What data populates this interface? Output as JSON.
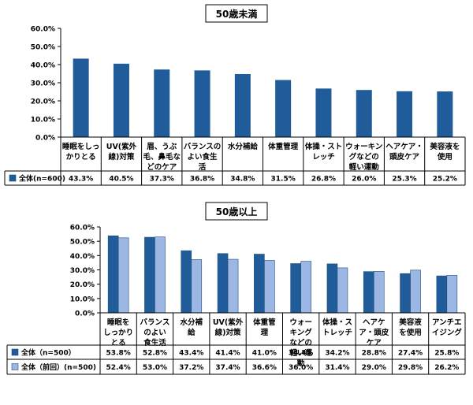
{
  "colors": {
    "dark_blue": "#1F5C99",
    "light_blue": "#9DB7E5",
    "axis": "#000000",
    "grid": "#D9D9D9"
  },
  "chart_data": [
    {
      "type": "bar",
      "title": "50歳未満",
      "ylim": [
        0,
        60
      ],
      "yticks": [
        "0.0%",
        "10.0%",
        "20.0%",
        "30.0%",
        "40.0%",
        "50.0%",
        "60.0%"
      ],
      "categories": [
        [
          "睡眠をしっ",
          "かりとる"
        ],
        [
          "UV(紫外",
          "線)対策"
        ],
        [
          "眉、うぶ",
          "毛、鼻毛な",
          "どのケア"
        ],
        [
          "バランスの",
          "よい食生",
          "活"
        ],
        [
          "水分補給"
        ],
        [
          "体重管理"
        ],
        [
          "体操・スト",
          "レッチ"
        ],
        [
          "ウォーキン",
          "グなどの",
          "軽い運動"
        ],
        [
          "ヘアケア・",
          "頭皮ケア"
        ],
        [
          "美容液を",
          "使用"
        ]
      ],
      "series": [
        {
          "name": "全体(n=600)",
          "values": [
            43.3,
            40.5,
            37.3,
            36.8,
            34.8,
            31.5,
            26.8,
            26.0,
            25.3,
            25.2
          ],
          "labels": [
            "43.3%",
            "40.5%",
            "37.3%",
            "36.8%",
            "34.8%",
            "31.5%",
            "26.8%",
            "26.0%",
            "25.3%",
            "25.2%"
          ]
        }
      ]
    },
    {
      "type": "bar",
      "title": "50歳以上",
      "ylim": [
        0,
        60
      ],
      "yticks": [
        "0.0%",
        "10.0%",
        "20.0%",
        "30.0%",
        "40.0%",
        "50.0%",
        "60.0%"
      ],
      "categories": [
        [
          "睡眠を",
          "しっかり",
          "とる"
        ],
        [
          "バランス",
          "のよい",
          "食生活"
        ],
        [
          "水分補",
          "給"
        ],
        [
          "UV(紫外",
          "線)対策"
        ],
        [
          "体重管",
          "理"
        ],
        [
          "ウォー",
          "キング",
          "などの",
          "軽い運",
          "動"
        ],
        [
          "体操・ス",
          "トレッチ"
        ],
        [
          "ヘアケ",
          "ア・頭皮",
          "ケア"
        ],
        [
          "美容液",
          "を使用"
        ],
        [
          "アンチエ",
          "イジング"
        ]
      ],
      "series": [
        {
          "name": "全体（n=500）",
          "values": [
            53.8,
            52.8,
            43.4,
            41.4,
            41.0,
            34.4,
            34.2,
            28.8,
            27.4,
            25.8
          ],
          "labels": [
            "53.8%",
            "52.8%",
            "43.4%",
            "41.4%",
            "41.0%",
            "34.4%",
            "34.2%",
            "28.8%",
            "27.4%",
            "25.8%"
          ]
        },
        {
          "name": "全体（前回）(n=500)",
          "values": [
            52.4,
            53.0,
            37.2,
            37.4,
            36.6,
            36.0,
            31.4,
            29.0,
            29.8,
            26.2
          ],
          "labels": [
            "52.4%",
            "53.0%",
            "37.2%",
            "37.4%",
            "36.6%",
            "36.0%",
            "31.4%",
            "29.0%",
            "29.8%",
            "26.2%"
          ]
        }
      ]
    }
  ]
}
